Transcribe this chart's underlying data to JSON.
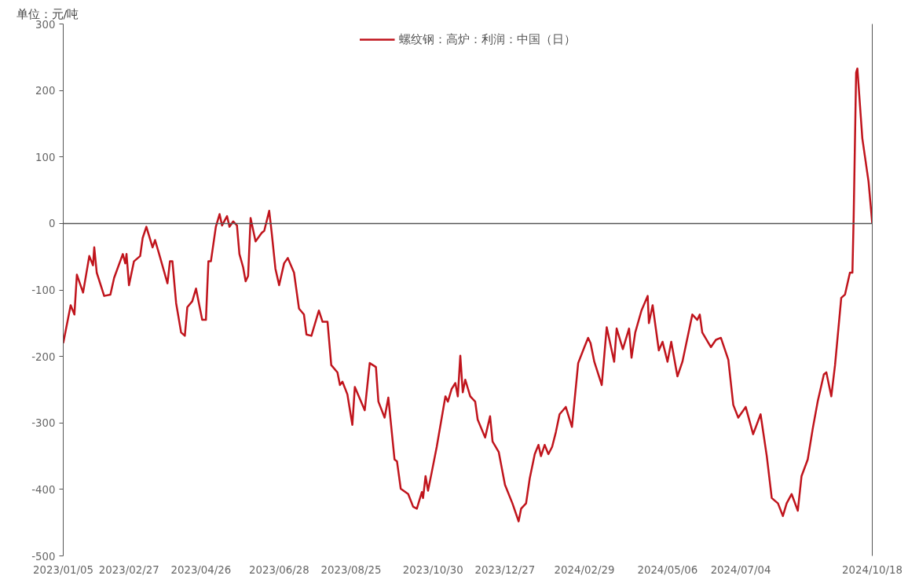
{
  "chart_data": {
    "type": "line",
    "ylabel": "单位：元/吨",
    "legend": "top",
    "grid": false,
    "x": [
      "2023-01-05",
      "2023-01-09",
      "2023-01-11",
      "2023-01-14",
      "2023-01-16",
      "2023-01-21",
      "2023-01-26",
      "2023-01-29",
      "2023-01-30",
      "2023-02-01",
      "2023-02-07",
      "2023-02-12",
      "2023-02-15",
      "2023-02-22",
      "2023-02-24",
      "2023-02-25",
      "2023-02-27",
      "2023-03-03",
      "2023-03-08",
      "2023-03-10",
      "2023-03-13",
      "2023-03-18",
      "2023-03-20",
      "2023-03-23",
      "2023-03-30",
      "2023-04-01",
      "2023-04-03",
      "2023-04-06",
      "2023-04-10",
      "2023-04-13",
      "2023-04-15",
      "2023-04-19",
      "2023-04-22",
      "2023-04-27",
      "2023-04-30",
      "2023-05-02",
      "2023-05-04",
      "2023-05-08",
      "2023-05-11",
      "2023-05-13",
      "2023-05-17",
      "2023-05-19",
      "2023-05-22",
      "2023-05-25",
      "2023-05-27",
      "2023-05-30",
      "2023-06-01",
      "2023-06-03",
      "2023-06-05",
      "2023-06-09",
      "2023-06-14",
      "2023-06-16",
      "2023-06-20",
      "2023-06-22",
      "2023-06-25",
      "2023-06-28",
      "2023-07-02",
      "2023-07-05",
      "2023-07-10",
      "2023-07-14",
      "2023-07-18",
      "2023-07-20",
      "2023-07-24",
      "2023-07-30",
      "2023-08-02",
      "2023-08-06",
      "2023-08-09",
      "2023-08-14",
      "2023-08-16",
      "2023-08-18",
      "2023-08-22",
      "2023-08-26",
      "2023-08-28",
      "2023-09-05",
      "2023-09-09",
      "2023-09-14",
      "2023-09-16",
      "2023-09-21",
      "2023-09-24",
      "2023-09-29",
      "2023-10-01",
      "2023-10-04",
      "2023-10-10",
      "2023-10-14",
      "2023-10-17",
      "2023-10-21",
      "2023-10-22",
      "2023-10-24",
      "2023-10-26",
      "2023-10-29",
      "2023-11-02",
      "2023-11-09",
      "2023-11-11",
      "2023-11-14",
      "2023-11-17",
      "2023-11-19",
      "2023-11-21",
      "2023-11-23",
      "2023-11-25",
      "2023-11-29",
      "2023-12-03",
      "2023-12-05",
      "2023-12-11",
      "2023-12-15",
      "2023-12-17",
      "2023-12-22",
      "2023-12-27",
      "2024-01-02",
      "2024-01-07",
      "2024-01-09",
      "2024-01-13",
      "2024-01-16",
      "2024-01-20",
      "2024-01-23",
      "2024-01-25",
      "2024-01-28",
      "2024-01-31",
      "2024-02-03",
      "2024-02-06",
      "2024-02-09",
      "2024-02-14",
      "2024-02-19",
      "2024-02-24",
      "2024-02-29",
      "2024-03-03",
      "2024-03-05",
      "2024-03-08",
      "2024-03-14",
      "2024-03-18",
      "2024-03-24",
      "2024-03-26",
      "2024-03-31",
      "2024-04-05",
      "2024-04-07",
      "2024-04-10",
      "2024-04-15",
      "2024-04-20",
      "2024-04-21",
      "2024-04-24",
      "2024-04-29",
      "2024-05-02",
      "2024-05-06",
      "2024-05-09",
      "2024-05-14",
      "2024-05-18",
      "2024-05-26",
      "2024-05-30",
      "2024-06-01",
      "2024-06-03",
      "2024-06-10",
      "2024-06-14",
      "2024-06-18",
      "2024-06-24",
      "2024-06-28",
      "2024-07-02",
      "2024-07-08",
      "2024-07-14",
      "2024-07-20",
      "2024-07-25",
      "2024-07-29",
      "2024-08-03",
      "2024-08-07",
      "2024-08-10",
      "2024-08-14",
      "2024-08-19",
      "2024-08-22",
      "2024-08-27",
      "2024-08-31",
      "2024-09-04",
      "2024-09-09",
      "2024-09-11",
      "2024-09-15",
      "2024-09-18",
      "2024-09-23",
      "2024-09-26",
      "2024-09-30",
      "2024-10-02",
      "2024-10-03",
      "2024-10-05",
      "2024-10-06",
      "2024-10-10",
      "2024-10-15",
      "2024-10-18"
    ],
    "series": [
      {
        "name": "螺纹钢：高炉：利润：中国（日）",
        "color": "#c0141c",
        "values": [
          -180,
          -142,
          -123,
          -137,
          -77,
          -104,
          -49,
          -63,
          -36,
          -74,
          -109,
          -107,
          -82,
          -46,
          -60,
          -46,
          -93,
          -57,
          -49,
          -22,
          -5,
          -36,
          -25,
          -44,
          -90,
          -57,
          -57,
          -120,
          -164,
          -169,
          -126,
          -117,
          -98,
          -145,
          -145,
          -57,
          -57,
          -5,
          14,
          -3,
          11,
          -5,
          3,
          -3,
          -46,
          -66,
          -87,
          -79,
          8,
          -27,
          -14,
          -11,
          19,
          -14,
          -68,
          -93,
          -60,
          -52,
          -74,
          -128,
          -137,
          -167,
          -169,
          -131,
          -148,
          -148,
          -213,
          -224,
          -243,
          -238,
          -257,
          -303,
          -246,
          -281,
          -210,
          -216,
          -268,
          -292,
          -262,
          -355,
          -358,
          -399,
          -407,
          -426,
          -429,
          -404,
          -413,
          -380,
          -402,
          -374,
          -336,
          -260,
          -268,
          -249,
          -240,
          -260,
          -199,
          -254,
          -235,
          -260,
          -268,
          -295,
          -322,
          -290,
          -328,
          -344,
          -393,
          -421,
          -448,
          -429,
          -421,
          -383,
          -347,
          -333,
          -350,
          -333,
          -347,
          -336,
          -314,
          -287,
          -276,
          -306,
          -210,
          -186,
          -172,
          -180,
          -208,
          -243,
          -156,
          -208,
          -158,
          -189,
          -158,
          -202,
          -164,
          -131,
          -109,
          -150,
          -123,
          -191,
          -178,
          -208,
          -178,
          -230,
          -208,
          -137,
          -145,
          -137,
          -164,
          -186,
          -175,
          -172,
          -205,
          -273,
          -292,
          -276,
          -317,
          -287,
          -350,
          -413,
          -421,
          -440,
          -421,
          -407,
          -432,
          -380,
          -355,
          -309,
          -268,
          -227,
          -224,
          -260,
          -213,
          -112,
          -107,
          -74,
          -74,
          8,
          227,
          233,
          128,
          63,
          0
        ]
      }
    ],
    "xlim": [
      "2023-01-05",
      "2024-10-18"
    ],
    "xticks": [
      {
        "value": "2023-01-05",
        "label": "2023/01/05"
      },
      {
        "value": "2023-02-27",
        "label": "2023/02/27"
      },
      {
        "value": "2023-04-26",
        "label": "2023/04/26"
      },
      {
        "value": "2023-06-28",
        "label": "2023/06/28"
      },
      {
        "value": "2023-08-25",
        "label": "2023/08/25"
      },
      {
        "value": "2023-10-30",
        "label": "2023/10/30"
      },
      {
        "value": "2023-12-27",
        "label": "2023/12/27"
      },
      {
        "value": "2024-02-29",
        "label": "2024/02/29"
      },
      {
        "value": "2024-05-06",
        "label": "2024/05/06"
      },
      {
        "value": "2024-07-04",
        "label": "2024/07/04"
      },
      {
        "value": "2024-10-18",
        "label": "2024/10/18"
      }
    ],
    "ylim": [
      -500,
      300
    ],
    "yticks": [
      -500,
      -400,
      -300,
      -200,
      -100,
      0,
      100,
      200,
      300
    ],
    "ref_lines": [
      {
        "axis": "y",
        "value": 0,
        "color": "#555555"
      }
    ]
  }
}
